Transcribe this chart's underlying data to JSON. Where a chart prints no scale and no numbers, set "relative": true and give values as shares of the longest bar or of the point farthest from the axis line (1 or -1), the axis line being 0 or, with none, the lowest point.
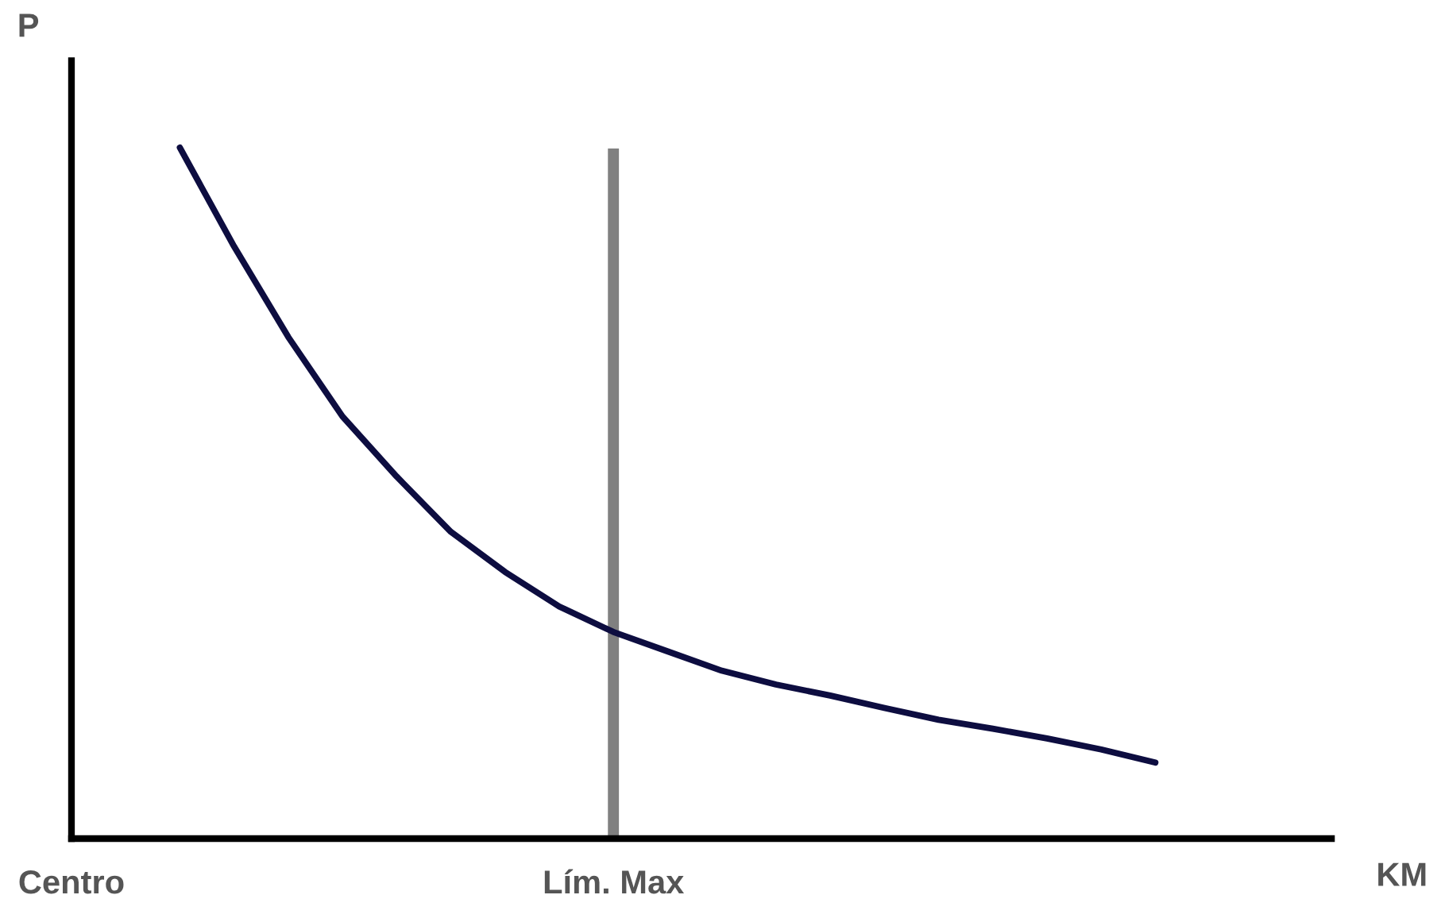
{
  "chart_data": {
    "type": "line",
    "relative": true,
    "xlabel": "KM",
    "ylabel": "P",
    "categories": [
      "Centro",
      null,
      null,
      null,
      null,
      null,
      null,
      null,
      null,
      null,
      "Lím. Max",
      null,
      null,
      null,
      null,
      null,
      null,
      null,
      null,
      null,
      null,
      null,
      null,
      null
    ],
    "series": [
      {
        "color": "#0d0d40",
        "values": [
          null,
          null,
          1.0,
          0.857,
          0.726,
          0.611,
          0.524,
          0.444,
          0.386,
          0.336,
          0.299,
          0.271,
          0.243,
          0.223,
          0.207,
          0.189,
          0.172,
          0.159,
          0.145,
          0.129,
          0.11,
          null,
          null,
          null
        ]
      }
    ],
    "ref_lines": [
      {
        "axis": "x",
        "value": "Lím. Max",
        "color": "#808080"
      }
    ],
    "grid": false,
    "legend": false,
    "marker": "none",
    "line_style": "solid"
  }
}
